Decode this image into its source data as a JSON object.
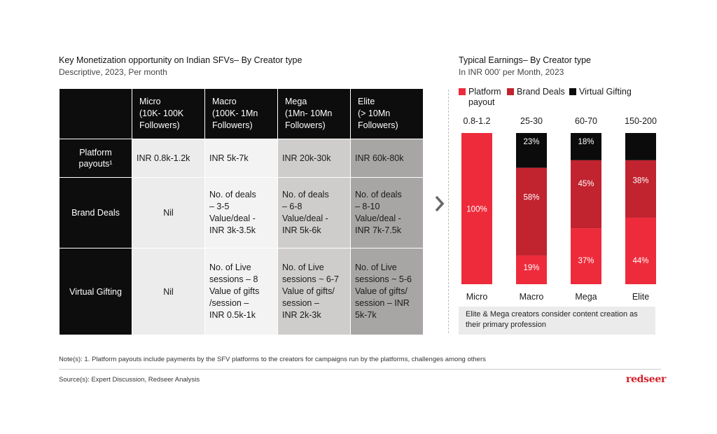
{
  "left_panel": {
    "title": "Key Monetization opportunity on Indian SFVs– By Creator type",
    "subtitle": "Descriptive, 2023, Per month",
    "columns": [
      {
        "lines": [
          "Micro",
          "(10K- 100K",
          "Followers)"
        ]
      },
      {
        "lines": [
          "Macro",
          "(100K- 1Mn",
          "Followers)"
        ]
      },
      {
        "lines": [
          "Mega",
          "(1Mn- 10Mn",
          "Followers)"
        ]
      },
      {
        "lines": [
          "Elite",
          "(> 10Mn",
          "Followers)"
        ]
      }
    ],
    "rows": [
      {
        "label_lines": [
          "Platform",
          "payouts¹"
        ],
        "cells": [
          [
            "INR 0.8k-1.2k"
          ],
          [
            "INR 5k-7k"
          ],
          [
            "INR 20k-30k"
          ],
          [
            "INR 60k-80k"
          ]
        ]
      },
      {
        "label_lines": [
          "Brand Deals"
        ],
        "cells": [
          [
            "Nil"
          ],
          [
            "No. of deals",
            "– 3-5",
            "Value/deal -",
            "INR 3k-3.5k"
          ],
          [
            "No. of deals",
            "– 6-8",
            "Value/deal -",
            "INR 5k-6k"
          ],
          [
            "No. of deals",
            "– 8-10",
            "Value/deal -",
            "INR 7k-7.5k"
          ]
        ]
      },
      {
        "label_lines": [
          "Virtual Gifting"
        ],
        "cells": [
          [
            "Nil"
          ],
          [
            "No. of Live",
            "sessions – 8",
            "Value of gifts",
            "/session –",
            "INR 0.5k-1k"
          ],
          [
            "No. of Live",
            "sessions ~ 6-7",
            "Value of gifts/",
            "session –",
            "INR 2k-3k"
          ],
          [
            "No. of Live",
            "sessions ~ 5-6",
            "Value of gifts/",
            "session – INR",
            "5k-7k"
          ]
        ]
      }
    ]
  },
  "right_panel": {
    "title": "Typical Earnings– By Creator type",
    "subtitle": "In INR 000’ per Month, 2023",
    "callout": "Elite & Mega creators consider content creation as their primary profession"
  },
  "chart_data": {
    "type": "bar",
    "stacked": true,
    "normalized_to": 100,
    "categories": [
      "Micro",
      "Macro",
      "Mega",
      "Elite"
    ],
    "totals_labels": [
      "0.8-1.2",
      "25-30",
      "60-70",
      "150-200"
    ],
    "legend_lines": [
      [
        "Platform",
        "payout"
      ],
      [
        "Brand Deals"
      ],
      [
        "Virtual Gifting"
      ]
    ],
    "series": [
      {
        "name": "Platform payout",
        "values": [
          100,
          19,
          37,
          44
        ],
        "labels": [
          "100%",
          "19%",
          "37%",
          "44%"
        ],
        "color": "#ee2b3b",
        "label_color": "#ffffff"
      },
      {
        "name": "Brand Deals",
        "values": [
          0,
          58,
          45,
          38
        ],
        "labels": [
          "",
          "58%",
          "45%",
          "38%"
        ],
        "color": "#c1232f",
        "label_color": "#ffffff"
      },
      {
        "name": "Virtual Gifting",
        "values": [
          0,
          23,
          18,
          18
        ],
        "labels": [
          "",
          "23%",
          "18%",
          ""
        ],
        "color": "#0b0b0b",
        "label_color": "#ffffff"
      }
    ],
    "ylim": [
      0,
      100
    ]
  },
  "footer": {
    "note": "Note(s): 1. Platform payouts include payments by the SFV platforms to the creators for campaigns run by the platforms, challenges among others",
    "source": "Source(s): Expert Discussion, Redseer Analysis",
    "logo": "redseer"
  }
}
